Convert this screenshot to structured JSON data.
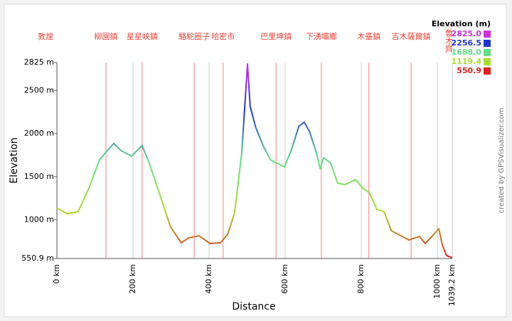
{
  "chart_data": {
    "type": "line",
    "x_label": "Distance",
    "y_label": "Elevation",
    "legend_title": "Elevation (m)",
    "credit": "created by GPSVisualizer.com",
    "xlim": [
      0,
      1039.2
    ],
    "ylim": [
      550.9,
      2825
    ],
    "xticks": [
      {
        "value": 0,
        "label": "0 km"
      },
      {
        "value": 200,
        "label": "200 km"
      },
      {
        "value": 400,
        "label": "400 km"
      },
      {
        "value": 600,
        "label": "600 km"
      },
      {
        "value": 800,
        "label": "800 km"
      },
      {
        "value": 1000,
        "label": "1000 km"
      },
      {
        "value": 1039.2,
        "label": "1039.2 km"
      }
    ],
    "yticks": [
      {
        "value": 550.9,
        "label": "550.9 m"
      },
      {
        "value": 1000,
        "label": "1000 m"
      },
      {
        "value": 1500,
        "label": "1500 m"
      },
      {
        "value": 2000,
        "label": "2000 m"
      },
      {
        "value": 2500,
        "label": "2500 m"
      },
      {
        "value": 2825,
        "label": "2825 m"
      }
    ],
    "grid": true,
    "color_scale": [
      {
        "value": 2825,
        "label": "2825.0",
        "color": "#cc33dd"
      },
      {
        "value": 2256.5,
        "label": "2256.5",
        "color": "#2233cc"
      },
      {
        "value": 1688,
        "label": "1688.0",
        "color": "#66dd88"
      },
      {
        "value": 1119.4,
        "label": "1119.4",
        "color": "#aadd33"
      },
      {
        "value": 550.9,
        "label": "550.9",
        "color": "#dd2222"
      }
    ],
    "waypoints": [
      {
        "name": "敦煌",
        "x": 0
      },
      {
        "name": "柳園鎮",
        "x": 129
      },
      {
        "name": "星星峽鎮",
        "x": 224
      },
      {
        "name": "駱駝圈子",
        "x": 361
      },
      {
        "name": "哈密市",
        "x": 437
      },
      {
        "name": "巴里坤鎮",
        "x": 576
      },
      {
        "name": "下湧壩鄉",
        "x": 695
      },
      {
        "name": "木壘鎮",
        "x": 820
      },
      {
        "name": "吉木薩爾鎮",
        "x": 931
      },
      {
        "name": "烏魯木齊",
        "x": 1039.2
      }
    ],
    "x": [
      0,
      28,
      56,
      84,
      112,
      131,
      150,
      168,
      196,
      224,
      243,
      271,
      299,
      327,
      346,
      374,
      402,
      430,
      449,
      467,
      486,
      501,
      508,
      523,
      542,
      561,
      579,
      598,
      617,
      636,
      650,
      664,
      682,
      692,
      701,
      720,
      738,
      757,
      785,
      804,
      822,
      841,
      860,
      879,
      897,
      925,
      953,
      968,
      991,
      1004,
      1013,
      1024,
      1039.2
    ],
    "values": [
      1136,
      1070,
      1095,
      1367,
      1697,
      1795,
      1886,
      1804,
      1738,
      1861,
      1655,
      1285,
      914,
      733,
      790,
      815,
      725,
      733,
      832,
      1079,
      1779,
      2809,
      2314,
      2067,
      1861,
      1697,
      1655,
      1614,
      1820,
      2084,
      2133,
      2026,
      1779,
      1590,
      1721,
      1655,
      1425,
      1408,
      1466,
      1367,
      1309,
      1120,
      1095,
      873,
      832,
      766,
      807,
      725,
      832,
      898,
      708,
      585,
      560
    ]
  }
}
